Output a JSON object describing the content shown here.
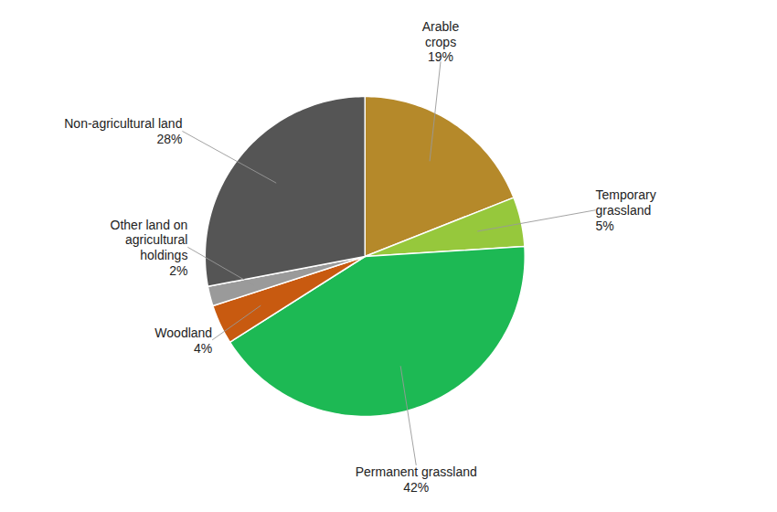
{
  "chart_data": {
    "type": "pie",
    "categories": [
      "Arable\ncrops",
      "Temporary\ngrassland",
      "Permanent grassland",
      "Woodland",
      "Other land on\nagricultural\nholdings",
      "Non-agricultural land"
    ],
    "values": [
      19,
      5,
      42,
      4,
      2,
      28
    ],
    "value_labels": [
      "19%",
      "5%",
      "42%",
      "4%",
      "2%",
      "28%"
    ],
    "colors": [
      "#b5892a",
      "#96c83c",
      "#1db954",
      "#c85a10",
      "#9a9a9a",
      "#555555"
    ],
    "data_labels": true
  }
}
